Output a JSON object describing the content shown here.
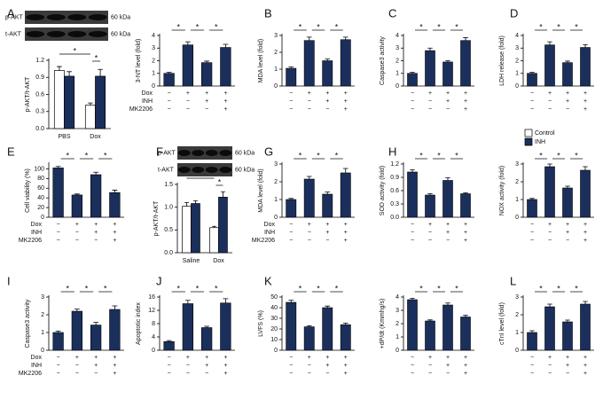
{
  "chart_data": [
    {
      "type": "grouped-bar",
      "panel": "A",
      "blot": {
        "rows": [
          "p-AKT",
          "t-AKT"
        ],
        "sizes": [
          "60 kDa",
          "60 kDa"
        ]
      },
      "ylabel": "p-AKT/t-AKT",
      "categories": [
        "PBS",
        "Dox"
      ],
      "series": [
        {
          "name": "Control",
          "color": "#ffffff",
          "values": [
            1.02,
            0.41
          ],
          "errors": [
            0.07,
            0.04
          ]
        },
        {
          "name": "INH",
          "color": "#1b2f5c",
          "values": [
            0.92,
            0.92
          ],
          "errors": [
            0.08,
            0.12
          ]
        }
      ],
      "ylim": [
        0,
        1.2
      ],
      "yticks": [
        {
          "value": 0,
          "label": "0.0"
        },
        0.3,
        0.6,
        0.9,
        1.2
      ],
      "annotations": [
        "*",
        "*"
      ]
    },
    {
      "type": "bar",
      "ylabel": "3-NT level (fold)",
      "values": [
        1.0,
        3.25,
        1.85,
        3.05
      ],
      "errors": [
        0.08,
        0.25,
        0.12,
        0.25
      ],
      "color": "#1b2f5c",
      "ylim": [
        0,
        4
      ],
      "yticks": [
        0,
        1,
        2,
        3,
        4
      ],
      "annotations": [
        "*",
        "*",
        "*"
      ],
      "treatments": [
        {
          "name": "Dox",
          "signs": [
            "−",
            "+",
            "+",
            "+"
          ]
        },
        {
          "name": "INH",
          "signs": [
            "−",
            "−",
            "+",
            "+"
          ]
        },
        {
          "name": "MK2206",
          "signs": [
            "−",
            "−",
            "−",
            "+"
          ]
        }
      ]
    },
    {
      "type": "bar",
      "panel": "B",
      "ylabel": "MDA level (fold)",
      "values": [
        1.05,
        2.7,
        1.5,
        2.75
      ],
      "errors": [
        0.08,
        0.2,
        0.1,
        0.15
      ],
      "color": "#1b2f5c",
      "ylim": [
        0,
        3
      ],
      "yticks": [
        0,
        1,
        2,
        3
      ],
      "annotations": [
        "*",
        "*",
        "*"
      ],
      "treatments": [
        {
          "signs": [
            "−",
            "+",
            "+",
            "+"
          ]
        },
        {
          "signs": [
            "−",
            "−",
            "+",
            "+"
          ]
        },
        {
          "signs": [
            "−",
            "−",
            "−",
            "+"
          ]
        }
      ]
    },
    {
      "type": "bar",
      "panel": "C",
      "ylabel": "Caspase3 activity",
      "values": [
        1.0,
        2.8,
        1.9,
        3.6
      ],
      "errors": [
        0.08,
        0.2,
        0.1,
        0.22
      ],
      "color": "#1b2f5c",
      "ylim": [
        0,
        4
      ],
      "yticks": [
        0,
        1,
        2,
        3,
        4
      ],
      "annotations": [
        "*",
        "*",
        "*"
      ],
      "treatments": [
        {
          "signs": [
            "−",
            "+",
            "+",
            "+"
          ]
        },
        {
          "signs": [
            "−",
            "−",
            "+",
            "+"
          ]
        },
        {
          "signs": [
            "−",
            "−",
            "−",
            "+"
          ]
        }
      ]
    },
    {
      "type": "bar",
      "panel": "D",
      "ylabel": "LDH release (fold)",
      "values": [
        1.0,
        3.25,
        1.85,
        3.05
      ],
      "errors": [
        0.08,
        0.25,
        0.12,
        0.22
      ],
      "color": "#1b2f5c",
      "ylim": [
        0,
        4
      ],
      "yticks": [
        0,
        1,
        2,
        3,
        4
      ],
      "annotations": [
        "*",
        "*",
        "*"
      ],
      "treatments": [
        {
          "signs": [
            "−",
            "+",
            "+",
            "+"
          ]
        },
        {
          "signs": [
            "−",
            "−",
            "+",
            "+"
          ]
        },
        {
          "signs": [
            "−",
            "−",
            "−",
            "+"
          ]
        }
      ]
    },
    {
      "type": "bar",
      "panel": "E",
      "ylabel": "Cell viability (%)",
      "values": [
        102,
        46,
        88,
        51
      ],
      "errors": [
        3,
        2,
        5,
        5
      ],
      "color": "#1b2f5c",
      "ylim": [
        0,
        110
      ],
      "yticks": [
        0,
        20,
        40,
        60,
        80,
        100
      ],
      "annotations": [
        "*",
        "*",
        "*"
      ],
      "treatments": [
        {
          "name": "Dox",
          "signs": [
            "−",
            "+",
            "+",
            "+"
          ]
        },
        {
          "name": "INH",
          "signs": [
            "−",
            "−",
            "+",
            "+"
          ]
        },
        {
          "name": "MK2206",
          "signs": [
            "−",
            "−",
            "−",
            "+"
          ]
        }
      ]
    },
    {
      "type": "grouped-bar",
      "panel": "F",
      "blot": {
        "rows": [
          "p-AKT",
          "t-AKT"
        ],
        "sizes": [
          "60 kDa",
          "60 kDa"
        ]
      },
      "ylabel": "p-AKT/t-AKT",
      "categories": [
        "Saline",
        "Dox"
      ],
      "series": [
        {
          "name": "Control",
          "color": "#ffffff",
          "values": [
            1.02,
            0.55
          ],
          "errors": [
            0.08,
            0.03
          ]
        },
        {
          "name": "INH",
          "color": "#1b2f5c",
          "values": [
            1.08,
            1.22
          ],
          "errors": [
            0.06,
            0.12
          ]
        }
      ],
      "ylim": [
        0,
        1.5
      ],
      "yticks": [
        {
          "value": 0,
          "label": "0.0"
        },
        0.5,
        {
          "value": 1,
          "label": "1.0"
        },
        1.5
      ],
      "annotations": [
        "*",
        "*"
      ]
    },
    {
      "type": "bar",
      "panel": "G",
      "ylabel": "MDA level (fold)",
      "values": [
        1.0,
        2.15,
        1.3,
        2.5
      ],
      "errors": [
        0.06,
        0.15,
        0.12,
        0.25
      ],
      "color": "#1b2f5c",
      "ylim": [
        0,
        3
      ],
      "yticks": [
        0,
        1,
        2,
        3
      ],
      "annotations": [
        "*",
        "*",
        "*"
      ],
      "treatments": [
        {
          "name": "Dox",
          "signs": [
            "−",
            "+",
            "+",
            "+"
          ]
        },
        {
          "name": "INH",
          "signs": [
            "−",
            "−",
            "+",
            "+"
          ]
        },
        {
          "name": "MK2206",
          "signs": [
            "−",
            "−",
            "−",
            "+"
          ]
        }
      ]
    },
    {
      "type": "bar",
      "panel": "H",
      "ylabel": "SOD activity (fold)",
      "values": [
        1.02,
        0.5,
        0.83,
        0.53
      ],
      "errors": [
        0.05,
        0.03,
        0.06,
        0.02
      ],
      "color": "#1b2f5c",
      "ylim": [
        0,
        1.2
      ],
      "yticks": [
        {
          "value": 0,
          "label": "0.0"
        },
        0.3,
        0.6,
        0.9,
        1.2
      ],
      "annotations": [
        "*",
        "*",
        "*"
      ],
      "treatments": [
        {
          "signs": [
            "−",
            "+",
            "+",
            "+"
          ]
        },
        {
          "signs": [
            "−",
            "−",
            "+",
            "+"
          ]
        },
        {
          "signs": [
            "−",
            "−",
            "−",
            "+"
          ]
        }
      ]
    },
    {
      "type": "bar",
      "ylabel": "NOX activity (fold)",
      "values": [
        1.0,
        2.85,
        1.65,
        2.65
      ],
      "errors": [
        0.06,
        0.15,
        0.1,
        0.2
      ],
      "color": "#1b2f5c",
      "ylim": [
        0,
        3
      ],
      "yticks": [
        0,
        1,
        2,
        3
      ],
      "annotations": [
        "*",
        "*",
        "*"
      ],
      "treatments": [
        {
          "signs": [
            "−",
            "+",
            "+",
            "+"
          ]
        },
        {
          "signs": [
            "−",
            "−",
            "+",
            "+"
          ]
        },
        {
          "signs": [
            "−",
            "−",
            "−",
            "+"
          ]
        }
      ]
    },
    {
      "type": "bar",
      "panel": "I",
      "ylabel": "Caspase3 activity",
      "values": [
        1.0,
        2.2,
        1.42,
        2.3
      ],
      "errors": [
        0.08,
        0.12,
        0.15,
        0.2
      ],
      "color": "#1b2f5c",
      "ylim": [
        0,
        3
      ],
      "yticks": [
        0,
        1,
        2,
        3
      ],
      "annotations": [
        "*",
        "*",
        "*"
      ],
      "treatments": [
        {
          "name": "Dox",
          "signs": [
            "−",
            "+",
            "+",
            "+"
          ]
        },
        {
          "name": "INH",
          "signs": [
            "−",
            "−",
            "+",
            "+"
          ]
        },
        {
          "name": "MK2206",
          "signs": [
            "−",
            "−",
            "−",
            "+"
          ]
        }
      ]
    },
    {
      "type": "bar",
      "panel": "J",
      "ylabel": "Apoptotic index",
      "values": [
        2.6,
        14,
        6.8,
        14.2
      ],
      "errors": [
        0.3,
        1.0,
        0.4,
        1.3
      ],
      "color": "#1b2f5c",
      "ylim": [
        0,
        16
      ],
      "yticks": [
        0,
        4,
        8,
        12,
        16
      ],
      "annotations": [
        "*",
        "*",
        "*"
      ],
      "treatments": [
        {
          "signs": [
            "−",
            "+",
            "+",
            "+"
          ]
        },
        {
          "signs": [
            "−",
            "−",
            "+",
            "+"
          ]
        },
        {
          "signs": [
            "−",
            "−",
            "−",
            "+"
          ]
        }
      ]
    },
    {
      "type": "bar",
      "panel": "K",
      "ylabel": "LVFS (%)",
      "values": [
        45,
        22,
        40,
        24
      ],
      "errors": [
        2,
        1,
        1.5,
        1.5
      ],
      "color": "#1b2f5c",
      "ylim": [
        0,
        50
      ],
      "yticks": [
        0,
        10,
        20,
        30,
        40,
        50
      ],
      "annotations": [
        "*",
        "*",
        "*"
      ],
      "treatments": [
        {
          "signs": [
            "−",
            "+",
            "+",
            "+"
          ]
        },
        {
          "signs": [
            "−",
            "−",
            "+",
            "+"
          ]
        },
        {
          "signs": [
            "−",
            "−",
            "−",
            "+"
          ]
        }
      ]
    },
    {
      "type": "bar",
      "ylabel": "+dP/dt (Kmmhg/s)",
      "values": [
        3.8,
        2.2,
        3.4,
        2.5
      ],
      "errors": [
        0.1,
        0.08,
        0.15,
        0.12
      ],
      "color": "#1b2f5c",
      "ylim": [
        0,
        4
      ],
      "yticks": [
        0,
        1,
        2,
        3,
        4
      ],
      "annotations": [
        "*",
        "*",
        "*"
      ],
      "treatments": [
        {
          "signs": [
            "−",
            "+",
            "+",
            "+"
          ]
        },
        {
          "signs": [
            "−",
            "−",
            "+",
            "+"
          ]
        },
        {
          "signs": [
            "−",
            "−",
            "−",
            "+"
          ]
        }
      ]
    },
    {
      "type": "bar",
      "panel": "L",
      "ylabel": "cTnI level (fold)",
      "values": [
        1.0,
        2.45,
        1.6,
        2.6
      ],
      "errors": [
        0.1,
        0.15,
        0.1,
        0.15
      ],
      "color": "#1b2f5c",
      "ylim": [
        0,
        3
      ],
      "yticks": [
        0,
        1,
        2,
        3
      ],
      "annotations": [
        "*",
        "*",
        "*"
      ],
      "treatments": [
        {
          "signs": [
            "−",
            "+",
            "+",
            "+"
          ]
        },
        {
          "signs": [
            "−",
            "−",
            "+",
            "+"
          ]
        },
        {
          "signs": [
            "−",
            "−",
            "−",
            "+"
          ]
        }
      ]
    }
  ]
}
